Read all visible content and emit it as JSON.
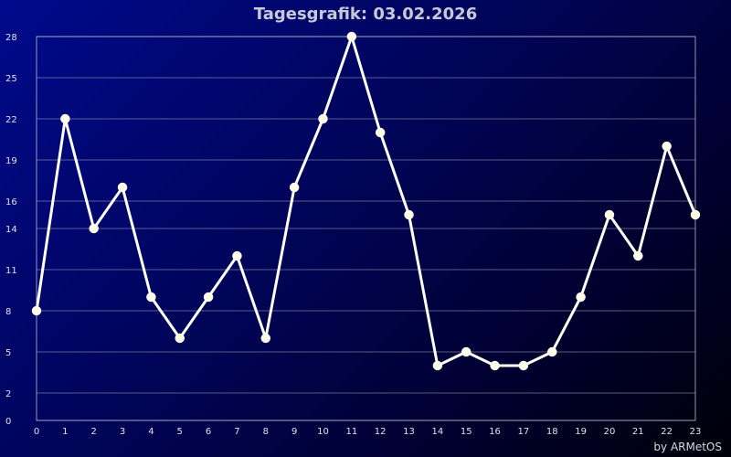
{
  "chart_data": {
    "type": "line",
    "title": "Tagesgrafik: 03.02.2026",
    "xlabel": "",
    "ylabel": "",
    "x": [
      0,
      1,
      2,
      3,
      4,
      5,
      6,
      7,
      8,
      9,
      10,
      11,
      12,
      13,
      14,
      15,
      16,
      17,
      18,
      19,
      20,
      21,
      22,
      23
    ],
    "values": [
      8,
      22,
      14,
      17,
      9,
      6,
      9,
      12,
      6,
      17,
      22,
      28,
      21,
      15,
      4,
      5,
      4,
      4,
      5,
      9,
      15,
      12,
      20,
      15
    ],
    "xlim": [
      0,
      23
    ],
    "ylim": [
      0,
      28
    ],
    "y_ticks": [
      "0",
      "2",
      "5",
      "8",
      "11",
      "14",
      "16",
      "19",
      "22",
      "25",
      "28"
    ],
    "x_ticks": [
      "0",
      "1",
      "2",
      "3",
      "4",
      "5",
      "6",
      "7",
      "8",
      "9",
      "10",
      "11",
      "12",
      "13",
      "14",
      "15",
      "16",
      "17",
      "18",
      "19",
      "20",
      "21",
      "22",
      "23"
    ],
    "grid": true,
    "line_color": "#ffffff",
    "marker_color": "#fffde8"
  },
  "credit": "by ARMetOS"
}
